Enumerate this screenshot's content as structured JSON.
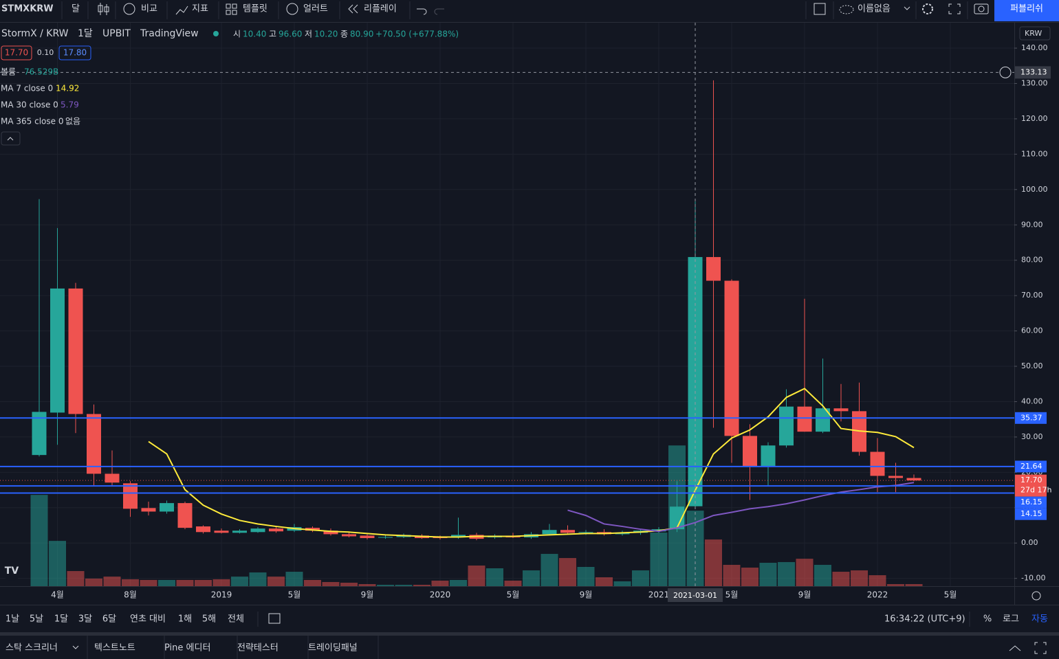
{
  "ui": {
    "toolbar": {
      "symbol": "STMXKRW",
      "interval": "달",
      "compare": "비교",
      "indicators": "지표",
      "templates": "템플릿",
      "alert": "얼러트",
      "replay": "리플레이",
      "layout": "이름없음",
      "publish": "퍼블리쉬"
    },
    "legend": {
      "symbol": "StormX / KRW",
      "interval": "1달",
      "exchange": "UPBIT",
      "source": "TradingView",
      "o_label": "시",
      "o": "10.40",
      "h_label": "고",
      "h": "96.60",
      "l_label": "저",
      "l": "10.20",
      "c_label": "종",
      "c": "80.90",
      "change": "+70.50 (+677.88%)",
      "bid": "17.70",
      "spread": "0.10",
      "ask": "17.80",
      "volume_label": "볼륨",
      "volume": "76.529B"
    },
    "currency": "KRW",
    "ranges": [
      "1날",
      "5날",
      "1달",
      "3달",
      "6달",
      "연초 대비",
      "1해",
      "5해",
      "전체"
    ],
    "time": "16:34:22 (UTC+9)",
    "percent": "%",
    "log": "로그",
    "auto": "자동",
    "tabs": [
      "스탁 스크리너",
      "텍스트노트",
      "Pine 에디터",
      "전략테스터",
      "트레이딩패널"
    ]
  },
  "chart_data": {
    "type": "candlestick",
    "categories": [
      null,
      "4월",
      null,
      null,
      null,
      "8월",
      null,
      null,
      null,
      null,
      "2019",
      null,
      null,
      null,
      "5월",
      null,
      null,
      null,
      "9월",
      null,
      null,
      null,
      "2020",
      null,
      null,
      null,
      "5월",
      null,
      null,
      null,
      "9월",
      null,
      null,
      null,
      "2021",
      null,
      null,
      null,
      "5월",
      null,
      null,
      null,
      "9월",
      null,
      null,
      null,
      "2022",
      null,
      null,
      null,
      "5월"
    ],
    "open": [
      24.9,
      36.9,
      72.0,
      36.5,
      19.6,
      16.9,
      9.9,
      8.9,
      11.3,
      4.7,
      3.5,
      2.9,
      3.1,
      4.1,
      3.5,
      4.3,
      3.5,
      2.5,
      2.1,
      1.6,
      1.7,
      2.1,
      1.7,
      1.6,
      2.3,
      1.6,
      2.1,
      1.6,
      2.5,
      3.7,
      2.9,
      3.1,
      2.5,
      2.9,
      3.3,
      3.9,
      10.4,
      80.9,
      74.2,
      30.3,
      21.6,
      27.6,
      38.6,
      31.5,
      38.1,
      37.3,
      25.8,
      19.0,
      18.4,
      null,
      null
    ],
    "high": [
      97.3,
      89.1,
      73.6,
      39.2,
      26.2,
      17.5,
      11.7,
      12.0,
      11.7,
      5.0,
      4.1,
      3.9,
      4.5,
      4.9,
      5.4,
      4.7,
      4.1,
      3.1,
      2.5,
      2.3,
      2.7,
      2.5,
      2.1,
      7.2,
      2.9,
      2.5,
      2.9,
      3.1,
      5.4,
      5.0,
      3.7,
      3.9,
      3.5,
      3.9,
      4.5,
      17.5,
      96.6,
      130.9,
      74.6,
      33.6,
      28.5,
      43.5,
      69.1,
      52.2,
      45.0,
      45.4,
      29.7,
      22.7,
      19.4,
      null,
      null
    ],
    "low": [
      24.5,
      27.8,
      31.1,
      16.3,
      16.3,
      7.4,
      7.8,
      8.3,
      3.9,
      2.7,
      2.7,
      2.7,
      2.9,
      2.9,
      3.1,
      3.1,
      2.1,
      1.6,
      1.0,
      1.2,
      1.4,
      1.2,
      1.0,
      1.2,
      0.8,
      1.2,
      1.4,
      1.2,
      2.1,
      2.7,
      2.3,
      2.1,
      2.1,
      2.3,
      2.9,
      3.1,
      10.2,
      32.6,
      22.7,
      12.2,
      16.3,
      27.0,
      31.5,
      31.1,
      34.4,
      24.7,
      14.4,
      14.4,
      17.5,
      null,
      null
    ],
    "close": [
      37.1,
      72.0,
      36.5,
      19.6,
      17.1,
      9.7,
      8.9,
      11.3,
      4.3,
      3.1,
      2.9,
      3.5,
      4.1,
      3.3,
      4.5,
      3.5,
      2.5,
      1.9,
      1.4,
      1.7,
      2.3,
      1.4,
      1.4,
      2.3,
      1.2,
      2.1,
      1.6,
      2.5,
      3.7,
      2.9,
      3.1,
      2.5,
      2.9,
      3.5,
      3.9,
      10.3,
      80.9,
      74.2,
      30.3,
      21.6,
      27.6,
      38.6,
      31.5,
      38.1,
      37.3,
      25.8,
      19.0,
      18.4,
      17.7,
      null,
      null
    ],
    "volume": [
      92.5,
      45.9,
      15.3,
      7.7,
      9.7,
      7.0,
      6.3,
      6.3,
      6.3,
      6.3,
      7.0,
      9.7,
      13.9,
      9.7,
      14.6,
      6.3,
      4.2,
      3.5,
      2.1,
      1.4,
      1.4,
      1.4,
      5.6,
      6.3,
      20.9,
      18.1,
      5.6,
      16.0,
      32.7,
      28.5,
      19.5,
      9.0,
      4.9,
      16.0,
      54.3,
      142.6,
      76.529,
      47.3,
      21.6,
      18.8,
      23.7,
      24.4,
      27.8,
      21.6,
      14.6,
      16.0,
      11.1,
      2.1,
      2.1,
      null,
      null
    ],
    "volume_ylim": [
      0,
      571
    ],
    "up_color": "#26a69a",
    "down_color": "#ef5350",
    "series": [
      {
        "name": "MA 7 close 0",
        "legend_value": "14.92",
        "color": "#ffeb3b",
        "values": [
          null,
          null,
          null,
          null,
          null,
          null,
          28.7,
          25.2,
          15.1,
          10.7,
          8.2,
          6.4,
          5.4,
          4.7,
          4.1,
          3.7,
          3.3,
          3.1,
          2.7,
          2.3,
          2.1,
          1.9,
          1.7,
          1.7,
          1.9,
          1.9,
          1.9,
          2.1,
          2.3,
          2.5,
          2.7,
          2.7,
          2.9,
          3.1,
          3.5,
          4.3,
          14.92,
          25.2,
          29.7,
          32.0,
          35.7,
          41.2,
          43.7,
          38.8,
          32.4,
          31.7,
          31.3,
          30.1,
          27.0,
          null,
          null
        ]
      },
      {
        "name": "MA 30 close 0",
        "legend_value": "5.79",
        "color": "#7e57c2",
        "values": [
          null,
          null,
          null,
          null,
          null,
          null,
          null,
          null,
          null,
          null,
          null,
          null,
          null,
          null,
          null,
          null,
          null,
          null,
          null,
          null,
          null,
          null,
          null,
          null,
          null,
          null,
          null,
          null,
          null,
          9.3,
          7.8,
          5.4,
          4.7,
          3.9,
          3.3,
          4.3,
          5.79,
          7.8,
          8.7,
          9.7,
          10.3,
          11.1,
          12.2,
          13.4,
          14.4,
          15.1,
          15.9,
          16.3,
          17.1,
          null,
          null
        ]
      }
    ],
    "extra_indicators": [
      {
        "name": "MA 365 close 0",
        "value": "없음"
      }
    ],
    "hlines": [
      {
        "value": 35.37,
        "label": "35.37"
      },
      {
        "value": 21.64,
        "label": "21.64"
      },
      {
        "value": 16.15,
        "label": "16.15"
      },
      {
        "value": 14.15,
        "label": "14.15"
      }
    ],
    "hline_color": "#2962ff",
    "last_price": {
      "value": 17.7,
      "label": "17.70"
    },
    "countdown": "27d 17h",
    "crosshair": {
      "value": 133.13,
      "label": "133.13",
      "index": 36,
      "x_label": "2021-03-01"
    },
    "ylim": [
      -12.2,
      147.2
    ],
    "yticks": [
      {
        "value": 140,
        "label": "140.00"
      },
      {
        "value": 130,
        "label": "130.00"
      },
      {
        "value": 120,
        "label": "120.00"
      },
      {
        "value": 110,
        "label": "110.00"
      },
      {
        "value": 100,
        "label": "100.00"
      },
      {
        "value": 90,
        "label": "90.00"
      },
      {
        "value": 80,
        "label": "80.00"
      },
      {
        "value": 70,
        "label": "70.00"
      },
      {
        "value": 60,
        "label": "60.00"
      },
      {
        "value": 50,
        "label": "50.00"
      },
      {
        "value": 40,
        "label": "40.00"
      },
      {
        "value": 30,
        "label": "30.00"
      },
      {
        "value": 20,
        "label": "20.00"
      },
      {
        "value": 10,
        "label": "10.00"
      },
      {
        "value": 0,
        "label": "0.00"
      },
      {
        "value": -10,
        "label": "-10.00"
      }
    ],
    "grid": true
  }
}
